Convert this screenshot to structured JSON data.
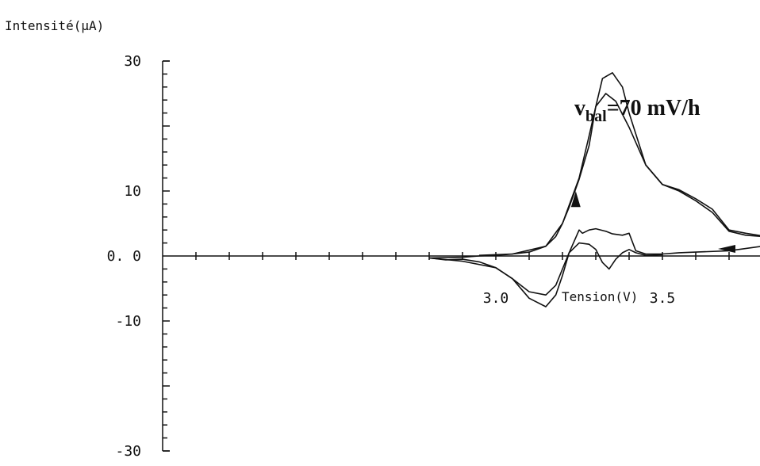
{
  "chart_data": {
    "type": "line",
    "ylabel": "Intensité(µA)",
    "xlabel": "Tension(V)",
    "annotation": {
      "text_main": "v",
      "text_sub": "bal",
      "text_rest": "=70 mV/h"
    },
    "xlim": [
      2.0,
      3.9
    ],
    "ylim": [
      -30,
      30
    ],
    "x_ticks": [
      {
        "value": 3.0,
        "label": "3.0"
      },
      {
        "value": 3.5,
        "label": "3.5"
      }
    ],
    "y_ticks": [
      {
        "value": 30,
        "label": "30"
      },
      {
        "value": 10,
        "label": "10"
      },
      {
        "value": 0,
        "label": "0. 0"
      },
      {
        "value": -10,
        "label": "-10"
      },
      {
        "value": -30,
        "label": "-30"
      }
    ],
    "x_minor_step": 0.1,
    "y_minor_step": 2,
    "series": [
      {
        "x": [
          2.8,
          2.9,
          2.95,
          3.0,
          3.05,
          3.1,
          3.15,
          3.18,
          3.2,
          3.22,
          3.25,
          3.28,
          3.3,
          3.32,
          3.35,
          3.38,
          3.4,
          3.45,
          3.5,
          3.55,
          3.6,
          3.65,
          3.7,
          3.75,
          3.8,
          3.82,
          3.8,
          3.7,
          3.6,
          3.55,
          3.5,
          3.45,
          3.42,
          3.4,
          3.38,
          3.35,
          3.33,
          3.3,
          3.28,
          3.26,
          3.25,
          3.22,
          3.2,
          3.18,
          3.15,
          3.1,
          3.05,
          3.0,
          2.95,
          2.9,
          2.85,
          2.8
        ],
        "y": [
          -0.3,
          -0.2,
          0.0,
          0.1,
          0.3,
          0.6,
          1.5,
          3.0,
          5.0,
          7.5,
          11.8,
          17.0,
          23.0,
          27.3,
          28.2,
          26.0,
          22.0,
          14.0,
          11.0,
          10.2,
          8.8,
          7.2,
          4.0,
          3.5,
          3.1,
          3.3,
          1.5,
          0.8,
          0.6,
          0.5,
          0.3,
          0.3,
          0.8,
          3.5,
          3.2,
          3.4,
          3.8,
          4.2,
          4.0,
          3.5,
          4.0,
          0.5,
          -3.0,
          -6.0,
          -7.8,
          -6.5,
          -3.5,
          -1.8,
          -0.9,
          -0.5,
          -0.6,
          -0.3
        ]
      },
      {
        "x": [
          2.95,
          3.05,
          3.15,
          3.2,
          3.25,
          3.28,
          3.3,
          3.33,
          3.36,
          3.4,
          3.45,
          3.5,
          3.55,
          3.6,
          3.65,
          3.7,
          3.75,
          3.8,
          3.82
        ],
        "y": [
          0.1,
          0.3,
          1.5,
          5.0,
          12.0,
          18.5,
          23.0,
          25.0,
          23.8,
          19.8,
          14.0,
          11.0,
          10.0,
          8.5,
          6.7,
          3.8,
          3.2,
          3.0,
          3.3
        ]
      },
      {
        "x": [
          2.8,
          2.9,
          3.0,
          3.05,
          3.1,
          3.15,
          3.18,
          3.2,
          3.22,
          3.25,
          3.28,
          3.3,
          3.32,
          3.34,
          3.36,
          3.38,
          3.4,
          3.42,
          3.45,
          3.5
        ],
        "y": [
          -0.3,
          -0.8,
          -1.8,
          -3.5,
          -5.5,
          -6.0,
          -4.5,
          -2.0,
          0.5,
          2.0,
          1.8,
          1.0,
          -1.0,
          -2.0,
          -0.5,
          0.5,
          1.0,
          0.5,
          0.1,
          0.2
        ]
      }
    ],
    "arrows": [
      {
        "x": 3.24,
        "y": 8.5,
        "dir": "up"
      },
      {
        "x": 3.7,
        "y": 1.1,
        "dir": "left"
      }
    ]
  }
}
